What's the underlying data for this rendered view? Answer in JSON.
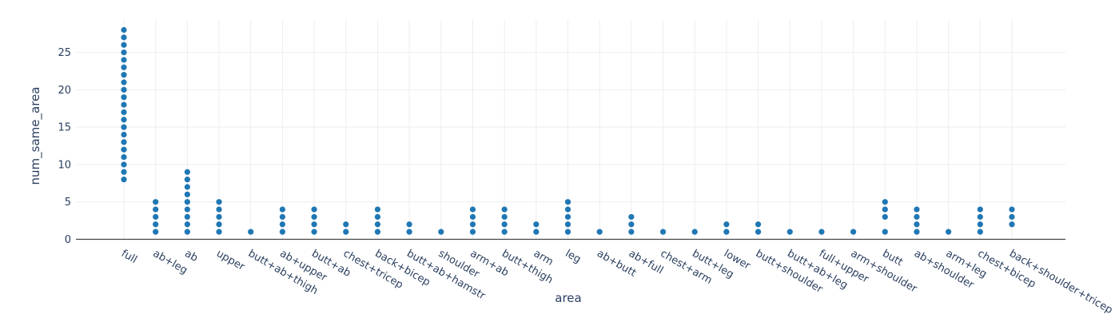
{
  "chart_data": {
    "type": "scatter",
    "title": "",
    "xlabel": "area",
    "ylabel": "num_same_area",
    "ylim": [
      0,
      29
    ],
    "yticks": [
      0,
      5,
      10,
      15,
      20,
      25
    ],
    "grid": true,
    "marker_color": "#1f77b4",
    "categories": [
      "full",
      "ab+leg",
      "ab",
      "upper",
      "butt+ab+thigh",
      "ab+upper",
      "butt+ab",
      "chest+tricep",
      "back+bicep",
      "butt+ab+hamstr",
      "shoulder",
      "arm+ab",
      "butt+thigh",
      "arm",
      "leg",
      "ab+butt",
      "ab+full",
      "chest+arm",
      "butt+leg",
      "lower",
      "butt+shoulder",
      "butt+ab+leg",
      "full+upper",
      "arm+shoulder",
      "butt",
      "ab+shoulder",
      "arm+leg",
      "chest+bicep",
      "back+shoulder+tricep"
    ],
    "points": [
      {
        "x": "full",
        "y": [
          8,
          9,
          10,
          11,
          12,
          13,
          14,
          15,
          16,
          17,
          18,
          19,
          20,
          21,
          22,
          23,
          24,
          25,
          26,
          27,
          28
        ]
      },
      {
        "x": "ab+leg",
        "y": [
          1,
          2,
          3,
          4,
          5
        ]
      },
      {
        "x": "ab",
        "y": [
          1,
          2,
          3,
          4,
          5,
          6,
          7,
          8,
          9
        ]
      },
      {
        "x": "upper",
        "y": [
          1,
          2,
          3,
          4,
          5
        ]
      },
      {
        "x": "butt+ab+thigh",
        "y": [
          1
        ]
      },
      {
        "x": "ab+upper",
        "y": [
          1,
          2,
          3,
          4
        ]
      },
      {
        "x": "butt+ab",
        "y": [
          1,
          2,
          3,
          4
        ]
      },
      {
        "x": "chest+tricep",
        "y": [
          1,
          2
        ]
      },
      {
        "x": "back+bicep",
        "y": [
          1,
          2,
          3,
          4
        ]
      },
      {
        "x": "butt+ab+hamstr",
        "y": [
          1,
          2
        ]
      },
      {
        "x": "shoulder",
        "y": [
          1
        ]
      },
      {
        "x": "arm+ab",
        "y": [
          1,
          2,
          3,
          4
        ]
      },
      {
        "x": "butt+thigh",
        "y": [
          1,
          2,
          3,
          4
        ]
      },
      {
        "x": "arm",
        "y": [
          1,
          2
        ]
      },
      {
        "x": "leg",
        "y": [
          1,
          2,
          3,
          4,
          5
        ]
      },
      {
        "x": "ab+butt",
        "y": [
          1
        ]
      },
      {
        "x": "ab+full",
        "y": [
          1,
          2,
          3
        ]
      },
      {
        "x": "chest+arm",
        "y": [
          1
        ]
      },
      {
        "x": "butt+leg",
        "y": [
          1
        ]
      },
      {
        "x": "lower",
        "y": [
          1,
          2
        ]
      },
      {
        "x": "butt+shoulder",
        "y": [
          1,
          2
        ]
      },
      {
        "x": "butt+ab+leg",
        "y": [
          1
        ]
      },
      {
        "x": "full+upper",
        "y": [
          1
        ]
      },
      {
        "x": "arm+shoulder",
        "y": [
          1
        ]
      },
      {
        "x": "butt",
        "y": [
          1,
          3,
          4,
          5
        ]
      },
      {
        "x": "ab+shoulder",
        "y": [
          1,
          2,
          3,
          4
        ]
      },
      {
        "x": "arm+leg",
        "y": [
          1
        ]
      },
      {
        "x": "chest+bicep",
        "y": [
          1,
          2,
          3,
          4
        ]
      },
      {
        "x": "back+shoulder+tricep",
        "y": [
          2,
          3,
          4
        ]
      }
    ]
  }
}
